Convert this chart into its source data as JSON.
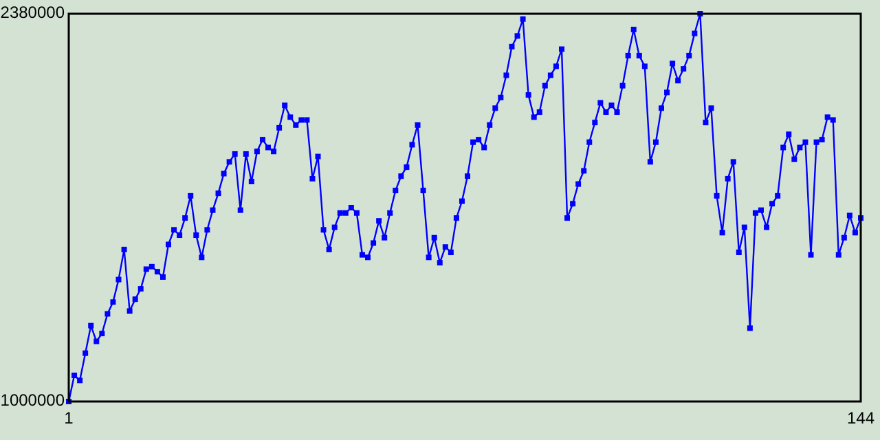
{
  "chart_data": {
    "type": "line",
    "x": [
      1,
      2,
      3,
      4,
      5,
      6,
      7,
      8,
      9,
      10,
      11,
      12,
      13,
      14,
      15,
      16,
      17,
      18,
      19,
      20,
      21,
      22,
      23,
      24,
      25,
      26,
      27,
      28,
      29,
      30,
      31,
      32,
      33,
      34,
      35,
      36,
      37,
      38,
      39,
      40,
      41,
      42,
      43,
      44,
      45,
      46,
      47,
      48,
      49,
      50,
      51,
      52,
      53,
      54,
      55,
      56,
      57,
      58,
      59,
      60,
      61,
      62,
      63,
      64,
      65,
      66,
      67,
      68,
      69,
      70,
      71,
      72,
      73,
      74,
      75,
      76,
      77,
      78,
      79,
      80,
      81,
      82,
      83,
      84,
      85,
      86,
      87,
      88,
      89,
      90,
      91,
      92,
      93,
      94,
      95,
      96,
      97,
      98,
      99,
      100,
      101,
      102,
      103,
      104,
      105,
      106,
      107,
      108,
      109,
      110,
      111,
      112,
      113,
      114,
      115,
      116,
      117,
      118,
      119,
      120,
      121,
      122,
      123,
      124,
      125,
      126,
      127,
      128,
      129,
      130,
      131,
      132,
      133,
      134,
      135,
      136,
      137,
      138,
      139,
      140,
      141,
      142,
      143,
      144
    ],
    "series": [
      {
        "color": "#0000ff",
        "values": [
          1000000,
          1093000,
          1075000,
          1172000,
          1270000,
          1214000,
          1242000,
          1312000,
          1354000,
          1434000,
          1541000,
          1322000,
          1364000,
          1401000,
          1471000,
          1480000,
          1462000,
          1443000,
          1559000,
          1611000,
          1592000,
          1653000,
          1732000,
          1592000,
          1513000,
          1611000,
          1681000,
          1741000,
          1811000,
          1853000,
          1881000,
          1681000,
          1881000,
          1783000,
          1890000,
          1932000,
          1904000,
          1890000,
          1974000,
          2054000,
          2012000,
          1984000,
          2002000,
          2002000,
          1793000,
          1872000,
          1611000,
          1541000,
          1620000,
          1671000,
          1671000,
          1690000,
          1671000,
          1522000,
          1513000,
          1564000,
          1643000,
          1583000,
          1671000,
          1751000,
          1802000,
          1834000,
          1914000,
          1984000,
          1751000,
          1513000,
          1583000,
          1494000,
          1550000,
          1531000,
          1653000,
          1713000,
          1802000,
          1923000,
          1932000,
          1904000,
          1984000,
          2044000,
          2082000,
          2161000,
          2263000,
          2301000,
          2361000,
          2091000,
          2012000,
          2030000,
          2124000,
          2161000,
          2193000,
          2254000,
          1653000,
          1704000,
          1774000,
          1821000,
          1923000,
          1993000,
          2063000,
          2030000,
          2054000,
          2030000,
          2124000,
          2231000,
          2324000,
          2231000,
          2193000,
          1853000,
          1923000,
          2044000,
          2100000,
          2203000,
          2142000,
          2184000,
          2231000,
          2310000,
          2380000,
          1993000,
          2044000,
          1732000,
          1601000,
          1793000,
          1853000,
          1531000,
          1620000,
          1261000,
          1671000,
          1681000,
          1620000,
          1704000,
          1732000,
          1904000,
          1951000,
          1862000,
          1904000,
          1923000,
          1522000,
          1923000,
          1932000,
          2012000,
          2002000,
          1522000,
          1583000,
          1662000,
          1601000,
          1653000
        ]
      }
    ],
    "xlim": [
      1,
      144
    ],
    "xticks": [
      1,
      144
    ],
    "ylim": [
      1000000,
      2380000
    ],
    "yticks": [
      1000000,
      2380000
    ],
    "marker": "square",
    "line_style": "solid"
  }
}
